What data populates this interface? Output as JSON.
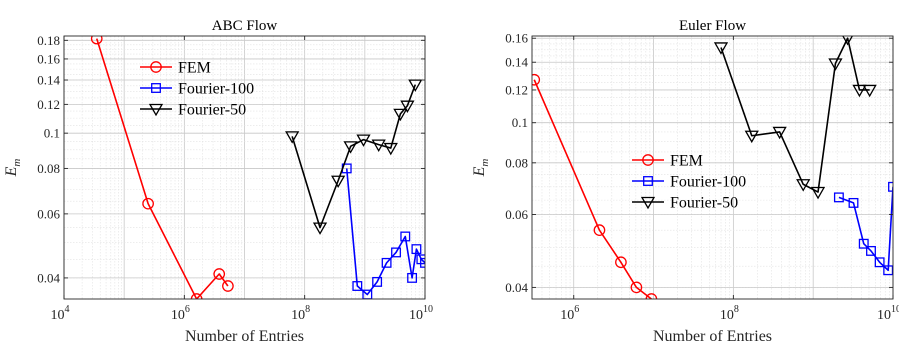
{
  "chart_data": [
    {
      "type": "line",
      "title": "ABC Flow",
      "xlabel": "Number of Entries",
      "ylabel": "E_m",
      "xscale": "log",
      "yscale": "log",
      "xlim": [
        10000,
        10000000000
      ],
      "ylim": [
        0.035,
        0.185
      ],
      "xticks": [
        {
          "value": 10000,
          "base": "10",
          "exp": "4"
        },
        {
          "value": 1000000,
          "base": "10",
          "exp": "6"
        },
        {
          "value": 100000000,
          "base": "10",
          "exp": "8"
        },
        {
          "value": 10000000000,
          "base": "10",
          "exp": "10"
        }
      ],
      "yticks": [
        {
          "value": 0.04,
          "label": "0.04"
        },
        {
          "value": 0.06,
          "label": "0.06"
        },
        {
          "value": 0.08,
          "label": "0.08"
        },
        {
          "value": 0.1,
          "label": "0.1"
        },
        {
          "value": 0.12,
          "label": "0.12"
        },
        {
          "value": 0.14,
          "label": "0.14"
        },
        {
          "value": 0.16,
          "label": "0.16"
        },
        {
          "value": 0.18,
          "label": "0.18"
        }
      ],
      "grid": true,
      "legend_position": "upper-left",
      "series": [
        {
          "name": "FEM",
          "color": "#ff0000",
          "marker": "circle",
          "x": [
            35000,
            250000,
            1600000,
            3800000,
            5300000
          ],
          "y": [
            0.182,
            0.064,
            0.035,
            0.041,
            0.038
          ]
        },
        {
          "name": "Fourier-100",
          "color": "#0000ff",
          "marker": "square",
          "x": [
            500000000,
            750000000,
            1100000000,
            1600000000,
            2300000000,
            3300000000,
            4700000000,
            6100000000,
            7200000000,
            8700000000,
            10000000000
          ],
          "y": [
            0.08,
            0.038,
            0.036,
            0.039,
            0.044,
            0.047,
            0.052,
            0.04,
            0.048,
            0.045,
            0.044
          ]
        },
        {
          "name": "Fourier-50",
          "color": "#000000",
          "marker": "triangle-down",
          "x": [
            62000000,
            180000000,
            360000000,
            580000000,
            950000000,
            1700000000,
            2700000000,
            3900000000,
            5100000000,
            6900000000
          ],
          "y": [
            0.098,
            0.055,
            0.074,
            0.092,
            0.096,
            0.093,
            0.091,
            0.113,
            0.119,
            0.136
          ]
        }
      ]
    },
    {
      "type": "line",
      "title": "Euler Flow",
      "xlabel": "Number of Entries",
      "ylabel": "E_m",
      "xscale": "log",
      "yscale": "log",
      "xlim": [
        300000,
        10000000000
      ],
      "ylim": [
        0.0375,
        0.162
      ],
      "xticks": [
        {
          "value": 1000000,
          "base": "10",
          "exp": "6"
        },
        {
          "value": 100000000,
          "base": "10",
          "exp": "8"
        },
        {
          "value": 10000000000,
          "base": "10",
          "exp": "10"
        }
      ],
      "yticks": [
        {
          "value": 0.04,
          "label": "0.04"
        },
        {
          "value": 0.06,
          "label": "0.06"
        },
        {
          "value": 0.08,
          "label": "0.08"
        },
        {
          "value": 0.1,
          "label": "0.1"
        },
        {
          "value": 0.12,
          "label": "0.12"
        },
        {
          "value": 0.14,
          "label": "0.14"
        },
        {
          "value": 0.16,
          "label": "0.16"
        }
      ],
      "grid": true,
      "legend_position": "center-left",
      "series": [
        {
          "name": "FEM",
          "color": "#ff0000",
          "marker": "circle",
          "x": [
            320000,
            2100000,
            3900000,
            6100000,
            9400000
          ],
          "y": [
            0.127,
            0.055,
            0.046,
            0.04,
            0.0375
          ]
        },
        {
          "name": "Fourier-100",
          "color": "#0000ff",
          "marker": "square",
          "x": [
            2100000000,
            3200000000,
            4300000000,
            5300000000,
            6800000000,
            8700000000,
            10000000000
          ],
          "y": [
            0.066,
            0.064,
            0.051,
            0.049,
            0.046,
            0.044,
            0.07
          ]
        },
        {
          "name": "Fourier-50",
          "color": "#000000",
          "marker": "triangle-down",
          "x": [
            70000000,
            170000000,
            380000000,
            750000000,
            1150000000,
            1900000000,
            2700000000,
            3800000000,
            5100000000
          ],
          "y": [
            0.152,
            0.093,
            0.095,
            0.071,
            0.068,
            0.139,
            0.16,
            0.12,
            0.12
          ]
        }
      ]
    }
  ]
}
